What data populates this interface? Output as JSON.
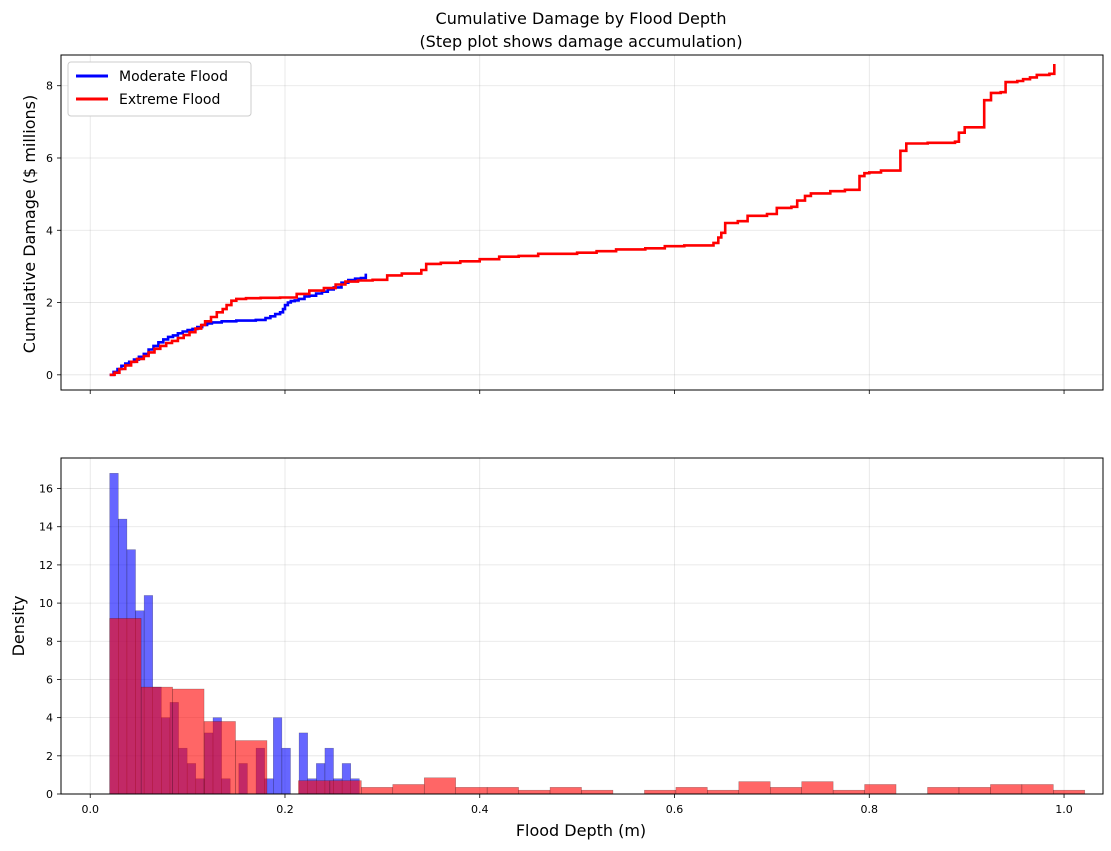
{
  "chart_data": [
    {
      "type": "line",
      "title_lines": [
        "Cumulative Damage by Flood Depth",
        "(Step plot shows damage accumulation)"
      ],
      "xlabel": "",
      "ylabel": "Cumulative Damage ($ millions)",
      "xlim": [
        -0.03,
        1.04
      ],
      "ylim": [
        -0.42,
        8.85
      ],
      "xticks": [
        0.0,
        0.2,
        0.4,
        0.6,
        0.8,
        1.0
      ],
      "yticks": [
        0,
        2,
        4,
        6,
        8
      ],
      "ytick_labels": [
        "0",
        "2",
        "4",
        "6",
        "8"
      ],
      "grid": true,
      "legend_position": "top-left",
      "series": [
        {
          "name": "Moderate Flood",
          "color": "#0000ff",
          "step": true,
          "points": [
            [
              0.02,
              0.0
            ],
            [
              0.024,
              0.08
            ],
            [
              0.028,
              0.16
            ],
            [
              0.032,
              0.25
            ],
            [
              0.036,
              0.31
            ],
            [
              0.04,
              0.36
            ],
            [
              0.045,
              0.42
            ],
            [
              0.05,
              0.5
            ],
            [
              0.055,
              0.58
            ],
            [
              0.06,
              0.7
            ],
            [
              0.065,
              0.8
            ],
            [
              0.07,
              0.9
            ],
            [
              0.075,
              0.98
            ],
            [
              0.08,
              1.05
            ],
            [
              0.085,
              1.09
            ],
            [
              0.09,
              1.15
            ],
            [
              0.095,
              1.2
            ],
            [
              0.1,
              1.24
            ],
            [
              0.105,
              1.27
            ],
            [
              0.11,
              1.32
            ],
            [
              0.115,
              1.38
            ],
            [
              0.12,
              1.42
            ],
            [
              0.125,
              1.45
            ],
            [
              0.135,
              1.48
            ],
            [
              0.15,
              1.5
            ],
            [
              0.17,
              1.52
            ],
            [
              0.18,
              1.57
            ],
            [
              0.185,
              1.62
            ],
            [
              0.19,
              1.68
            ],
            [
              0.195,
              1.73
            ],
            [
              0.198,
              1.82
            ],
            [
              0.2,
              1.93
            ],
            [
              0.203,
              2.0
            ],
            [
              0.206,
              2.04
            ],
            [
              0.21,
              2.06
            ],
            [
              0.214,
              2.1
            ],
            [
              0.22,
              2.17
            ],
            [
              0.225,
              2.19
            ],
            [
              0.232,
              2.25
            ],
            [
              0.238,
              2.3
            ],
            [
              0.244,
              2.36
            ],
            [
              0.25,
              2.42
            ],
            [
              0.258,
              2.55
            ],
            [
              0.265,
              2.62
            ],
            [
              0.272,
              2.66
            ],
            [
              0.278,
              2.68
            ],
            [
              0.283,
              2.8
            ]
          ]
        },
        {
          "name": "Extreme Flood",
          "color": "#ff0000",
          "step": true,
          "points": [
            [
              0.02,
              0.0
            ],
            [
              0.025,
              0.06
            ],
            [
              0.03,
              0.16
            ],
            [
              0.036,
              0.26
            ],
            [
              0.042,
              0.36
            ],
            [
              0.048,
              0.44
            ],
            [
              0.055,
              0.52
            ],
            [
              0.06,
              0.62
            ],
            [
              0.066,
              0.72
            ],
            [
              0.072,
              0.8
            ],
            [
              0.078,
              0.88
            ],
            [
              0.084,
              0.94
            ],
            [
              0.09,
              1.02
            ],
            [
              0.096,
              1.1
            ],
            [
              0.102,
              1.18
            ],
            [
              0.108,
              1.28
            ],
            [
              0.114,
              1.38
            ],
            [
              0.118,
              1.48
            ],
            [
              0.124,
              1.6
            ],
            [
              0.13,
              1.73
            ],
            [
              0.136,
              1.82
            ],
            [
              0.14,
              1.93
            ],
            [
              0.145,
              2.05
            ],
            [
              0.15,
              2.1
            ],
            [
              0.16,
              2.12
            ],
            [
              0.175,
              2.13
            ],
            [
              0.195,
              2.14
            ],
            [
              0.212,
              2.24
            ],
            [
              0.225,
              2.33
            ],
            [
              0.24,
              2.4
            ],
            [
              0.252,
              2.5
            ],
            [
              0.262,
              2.58
            ],
            [
              0.275,
              2.61
            ],
            [
              0.29,
              2.63
            ],
            [
              0.305,
              2.75
            ],
            [
              0.32,
              2.8
            ],
            [
              0.34,
              2.9
            ],
            [
              0.345,
              3.07
            ],
            [
              0.36,
              3.1
            ],
            [
              0.38,
              3.14
            ],
            [
              0.4,
              3.2
            ],
            [
              0.42,
              3.27
            ],
            [
              0.44,
              3.29
            ],
            [
              0.46,
              3.35
            ],
            [
              0.5,
              3.38
            ],
            [
              0.52,
              3.42
            ],
            [
              0.54,
              3.47
            ],
            [
              0.57,
              3.5
            ],
            [
              0.59,
              3.56
            ],
            [
              0.61,
              3.58
            ],
            [
              0.64,
              3.65
            ],
            [
              0.645,
              3.8
            ],
            [
              0.648,
              3.93
            ],
            [
              0.652,
              4.2
            ],
            [
              0.665,
              4.25
            ],
            [
              0.675,
              4.4
            ],
            [
              0.695,
              4.45
            ],
            [
              0.705,
              4.62
            ],
            [
              0.72,
              4.65
            ],
            [
              0.726,
              4.82
            ],
            [
              0.734,
              4.95
            ],
            [
              0.74,
              5.02
            ],
            [
              0.76,
              5.08
            ],
            [
              0.775,
              5.12
            ],
            [
              0.79,
              5.5
            ],
            [
              0.795,
              5.58
            ],
            [
              0.8,
              5.6
            ],
            [
              0.812,
              5.65
            ],
            [
              0.832,
              6.2
            ],
            [
              0.838,
              6.4
            ],
            [
              0.86,
              6.42
            ],
            [
              0.888,
              6.45
            ],
            [
              0.892,
              6.7
            ],
            [
              0.898,
              6.85
            ],
            [
              0.918,
              7.6
            ],
            [
              0.925,
              7.8
            ],
            [
              0.935,
              7.82
            ],
            [
              0.94,
              8.1
            ],
            [
              0.952,
              8.13
            ],
            [
              0.958,
              8.18
            ],
            [
              0.965,
              8.23
            ],
            [
              0.972,
              8.3
            ],
            [
              0.985,
              8.33
            ],
            [
              0.99,
              8.6
            ]
          ]
        }
      ]
    },
    {
      "type": "bar",
      "title": "",
      "xlabel": "Flood Depth (m)",
      "ylabel": "Density",
      "xlim": [
        -0.03,
        1.04
      ],
      "ylim": [
        0,
        17.6
      ],
      "xticks": [
        0.0,
        0.2,
        0.4,
        0.6,
        0.8,
        1.0
      ],
      "xtick_labels": [
        "0.0",
        "0.2",
        "0.4",
        "0.6",
        "0.8",
        "1.0"
      ],
      "yticks": [
        0,
        2,
        4,
        6,
        8,
        10,
        12,
        14,
        16
      ],
      "ytick_labels": [
        "0",
        "2",
        "4",
        "6",
        "8",
        "10",
        "12",
        "14",
        "16"
      ],
      "grid": true,
      "series": [
        {
          "name": "Moderate Flood",
          "color": "#0000ff",
          "alpha": 0.6,
          "bin_start": 0.02,
          "bin_width": 0.00884,
          "values": [
            16.8,
            14.4,
            12.8,
            9.6,
            10.4,
            5.6,
            4.0,
            4.8,
            2.4,
            1.6,
            0.8,
            3.2,
            4.0,
            0.8,
            0.0,
            1.6,
            0.0,
            2.4,
            0.8,
            4.0,
            2.4,
            0.0,
            3.2,
            0.8,
            1.6,
            2.4,
            0.8,
            1.6,
            0.8
          ]
        },
        {
          "name": "Extreme Flood",
          "color": "#ff0000",
          "alpha": 0.6,
          "bin_start": 0.02,
          "bin_width": 0.0323,
          "values": [
            9.2,
            5.6,
            5.5,
            3.8,
            2.8,
            0.0,
            0.7,
            0.7,
            0.35,
            0.5,
            0.85,
            0.35,
            0.35,
            0.2,
            0.35,
            0.2,
            0.0,
            0.2,
            0.35,
            0.2,
            0.65,
            0.35,
            0.65,
            0.2,
            0.5,
            0.0,
            0.35,
            0.35,
            0.5,
            0.5,
            0.2
          ]
        }
      ]
    }
  ]
}
